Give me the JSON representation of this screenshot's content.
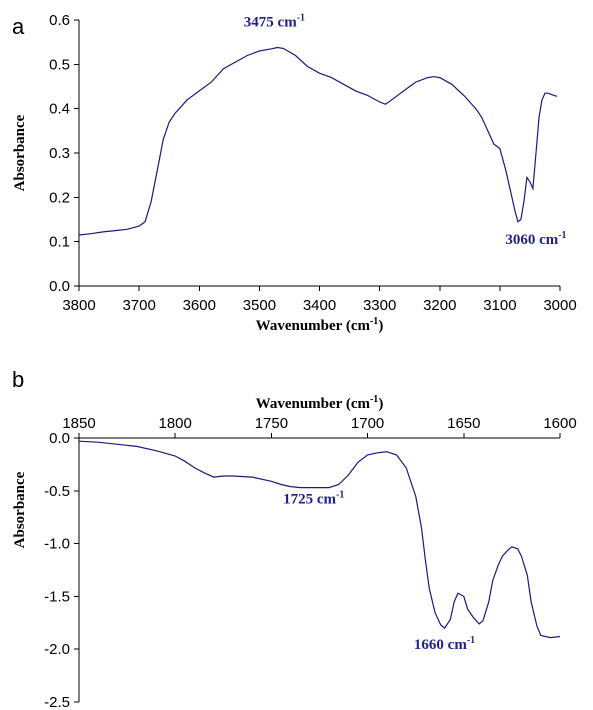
{
  "chart_data": [
    {
      "panel": "a",
      "type": "line",
      "xlabel": "Wavenumber (cm",
      "xlabel_sup": "-1",
      "xlabel_end": ")",
      "ylabel": "Absorbance",
      "xlim": [
        3800,
        3000
      ],
      "ylim": [
        0.0,
        0.6
      ],
      "x_reversed": true,
      "x_ticks": [
        "3800",
        "3700",
        "3600",
        "3500",
        "3400",
        "3300",
        "3200",
        "3100",
        "3000"
      ],
      "y_ticks": [
        "0.0",
        "0.1",
        "0.2",
        "0.3",
        "0.4",
        "0.5",
        "0.6"
      ],
      "grid": false,
      "annotations": [
        {
          "label": "3475 cm",
          "sup": "-1",
          "x": 3475,
          "y": 0.585
        },
        {
          "label": "3060 cm",
          "sup": "-1",
          "x": 3040,
          "y": 0.095
        }
      ],
      "series": [
        {
          "x": [
            3800,
            3780,
            3760,
            3740,
            3720,
            3700,
            3690,
            3680,
            3670,
            3660,
            3650,
            3640,
            3620,
            3600,
            3580,
            3560,
            3540,
            3520,
            3500,
            3480,
            3470,
            3460,
            3440,
            3420,
            3400,
            3380,
            3360,
            3340,
            3320,
            3300,
            3290,
            3280,
            3260,
            3240,
            3220,
            3210,
            3200,
            3180,
            3160,
            3140,
            3130,
            3120,
            3110,
            3100,
            3090,
            3080,
            3075,
            3070,
            3065,
            3060,
            3055,
            3050,
            3045,
            3040,
            3035,
            3030,
            3025,
            3020,
            3010,
            3005
          ],
          "y": [
            0.115,
            0.118,
            0.122,
            0.125,
            0.128,
            0.135,
            0.145,
            0.19,
            0.26,
            0.33,
            0.37,
            0.39,
            0.42,
            0.44,
            0.46,
            0.49,
            0.505,
            0.52,
            0.53,
            0.535,
            0.538,
            0.536,
            0.52,
            0.495,
            0.48,
            0.47,
            0.455,
            0.44,
            0.43,
            0.415,
            0.41,
            0.42,
            0.44,
            0.46,
            0.47,
            0.472,
            0.47,
            0.455,
            0.43,
            0.4,
            0.38,
            0.35,
            0.32,
            0.31,
            0.26,
            0.2,
            0.17,
            0.145,
            0.15,
            0.19,
            0.245,
            0.235,
            0.22,
            0.3,
            0.38,
            0.42,
            0.435,
            0.435,
            0.43,
            0.428
          ]
        }
      ]
    },
    {
      "panel": "b",
      "type": "line",
      "xlabel": "Wavenumber (cm",
      "xlabel_sup": "-1",
      "xlabel_end": ")",
      "ylabel": "Absorbance",
      "xlim": [
        1850,
        1600
      ],
      "ylim": [
        -2.5,
        0.0
      ],
      "x_reversed": true,
      "x_axis_position": "top",
      "x_ticks": [
        "1850",
        "1800",
        "1750",
        "1700",
        "1650",
        "1600"
      ],
      "y_ticks": [
        "0.0",
        "-0.5",
        "-1.0",
        "-1.5",
        "-2.0",
        "-2.5"
      ],
      "grid": false,
      "annotations": [
        {
          "label": "1725 cm",
          "sup": "-1",
          "x": 1728,
          "y": -0.62
        },
        {
          "label": "1660 cm",
          "sup": "-1",
          "x": 1660,
          "y": -2.0
        }
      ],
      "series": [
        {
          "x": [
            1850,
            1840,
            1830,
            1820,
            1810,
            1800,
            1795,
            1790,
            1785,
            1780,
            1775,
            1770,
            1760,
            1750,
            1745,
            1740,
            1735,
            1730,
            1725,
            1720,
            1715,
            1710,
            1705,
            1700,
            1695,
            1690,
            1685,
            1680,
            1675,
            1672,
            1670,
            1668,
            1665,
            1662,
            1660,
            1657,
            1655,
            1653,
            1650,
            1648,
            1645,
            1642,
            1640,
            1637,
            1635,
            1632,
            1630,
            1627,
            1625,
            1622,
            1620,
            1617,
            1615,
            1612,
            1610,
            1605,
            1600
          ],
          "y": [
            -0.03,
            -0.04,
            -0.06,
            -0.08,
            -0.12,
            -0.17,
            -0.22,
            -0.28,
            -0.33,
            -0.37,
            -0.36,
            -0.36,
            -0.37,
            -0.41,
            -0.44,
            -0.46,
            -0.47,
            -0.47,
            -0.47,
            -0.47,
            -0.44,
            -0.35,
            -0.23,
            -0.16,
            -0.14,
            -0.13,
            -0.16,
            -0.28,
            -0.55,
            -0.85,
            -1.15,
            -1.42,
            -1.65,
            -1.77,
            -1.8,
            -1.72,
            -1.55,
            -1.47,
            -1.5,
            -1.62,
            -1.7,
            -1.76,
            -1.73,
            -1.55,
            -1.35,
            -1.2,
            -1.12,
            -1.06,
            -1.03,
            -1.05,
            -1.12,
            -1.3,
            -1.55,
            -1.78,
            -1.87,
            -1.89,
            -1.88
          ]
        }
      ]
    }
  ]
}
